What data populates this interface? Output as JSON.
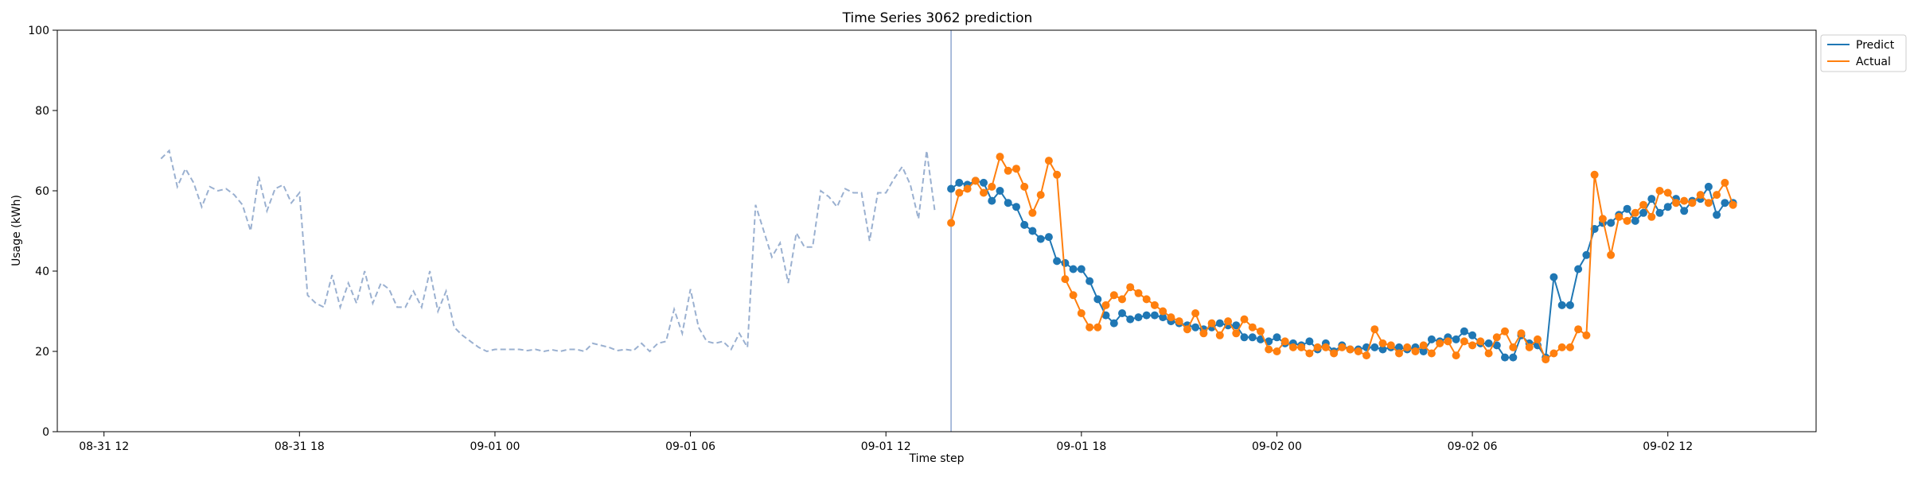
{
  "chart_data": {
    "type": "line",
    "title": "Time Series 3062 prediction",
    "xlabel": "Time step",
    "ylabel": "Usage (kWh)",
    "ylim": [
      0,
      100
    ],
    "xlim": [
      "2024-08-31 10:34",
      "2024-09-02 16:33"
    ],
    "yticks": [
      0,
      20,
      40,
      60,
      80,
      100
    ],
    "xticks": [
      {
        "t": "2024-08-31 12:00",
        "label": "08-31 12"
      },
      {
        "t": "2024-08-31 18:00",
        "label": "08-31 18"
      },
      {
        "t": "2024-09-01 00:00",
        "label": "09-01 00"
      },
      {
        "t": "2024-09-01 06:00",
        "label": "09-01 06"
      },
      {
        "t": "2024-09-01 12:00",
        "label": "09-01 12"
      },
      {
        "t": "2024-09-01 18:00",
        "label": "09-01 18"
      },
      {
        "t": "2024-09-02 00:00",
        "label": "09-02 00"
      },
      {
        "t": "2024-09-02 06:00",
        "label": "09-02 06"
      },
      {
        "t": "2024-09-02 12:00",
        "label": "09-02 12"
      }
    ],
    "step_minutes": 15,
    "grid": false,
    "legend_position": "top-right",
    "forecast_start": "2024-09-01 14:00",
    "colors": {
      "history": "#9ab0d0",
      "predict": "#1f77b4",
      "actual": "#ff7f0e",
      "divider": "#8fa8d0"
    },
    "history": {
      "start": "2024-08-31 13:45",
      "style": "dashed",
      "values": [
        68,
        70,
        61,
        65.5,
        62,
        56,
        61,
        60,
        60.5,
        59,
        56.5,
        50,
        63.5,
        55,
        60.5,
        61.5,
        57,
        59.5,
        34,
        32,
        31,
        39,
        31,
        37,
        32,
        40,
        32,
        37,
        35.5,
        31,
        31,
        35,
        31,
        40,
        30,
        35,
        26,
        24,
        22.5,
        21,
        20,
        20.5,
        20.5,
        20.5,
        20.5,
        20.2,
        20.5,
        20,
        20.4,
        20,
        20.5,
        20.5,
        20,
        22,
        21.5,
        21,
        20.2,
        20.5,
        20.2,
        22,
        20,
        22,
        22.5,
        30.5,
        24.5,
        35.5,
        26,
        22.5,
        22,
        22.5,
        20.5,
        24.5,
        21,
        56.5,
        50,
        43.5,
        47,
        37,
        49.5,
        46,
        46,
        60,
        58.5,
        56,
        60.5,
        59.5,
        59.5,
        47.5,
        59.5,
        59.5,
        63,
        66,
        61.5,
        53,
        70,
        55
      ]
    },
    "series": [
      {
        "name": "Predict",
        "start": "2024-09-01 14:00",
        "values": [
          60.5,
          62,
          61.5,
          62.5,
          62,
          57.5,
          60,
          57,
          56,
          51.5,
          50,
          48,
          48.5,
          42.5,
          42,
          40.5,
          40.5,
          37.5,
          33,
          29,
          27,
          29.5,
          28,
          28.5,
          29,
          29,
          28.5,
          27.5,
          27,
          26.5,
          26,
          25.5,
          26,
          27,
          26.5,
          26.5,
          23.5,
          23.5,
          23,
          22.5,
          23.5,
          22,
          22,
          21.5,
          22.5,
          20.5,
          22,
          20,
          21.5,
          20.5,
          20.5,
          21,
          21,
          20.5,
          21,
          21,
          20.5,
          21,
          20,
          23,
          22.5,
          23.5,
          23,
          25,
          24,
          22,
          22,
          21.5,
          18.5,
          18.5,
          24,
          22,
          21.5,
          18.5,
          38.5,
          31.5,
          31.5,
          40.5,
          44,
          50.5,
          52,
          52,
          54,
          55.5,
          52.5,
          54.5,
          58,
          54.5,
          56,
          58,
          55,
          57.5,
          58,
          61,
          54,
          57,
          57
        ]
      },
      {
        "name": "Actual",
        "start": "2024-09-01 14:00",
        "values": [
          52,
          59.5,
          60.5,
          62.5,
          59.5,
          61,
          68.5,
          65,
          65.5,
          61,
          54.5,
          59,
          67.5,
          64,
          38,
          34,
          29.5,
          26,
          26,
          31.5,
          34,
          33,
          36,
          34.5,
          33,
          31.5,
          30,
          28.5,
          27.5,
          25.5,
          29.5,
          24.5,
          27,
          24,
          27.5,
          24.5,
          28,
          26,
          25,
          20.5,
          20,
          22.5,
          21,
          21,
          19.5,
          21,
          21,
          19.5,
          21,
          20.5,
          20,
          19,
          25.5,
          22,
          21.5,
          19.5,
          21,
          20,
          21.5,
          19.5,
          22,
          22.5,
          19,
          22.5,
          21.5,
          22.5,
          19.5,
          23.5,
          25,
          21,
          24.5,
          21,
          23,
          18,
          19.5,
          21,
          21,
          25.5,
          24,
          64,
          53,
          44,
          53.5,
          52.5,
          54.5,
          56.5,
          53.5,
          60,
          59.5,
          57,
          57.5,
          57,
          59,
          57,
          59,
          62,
          56.5
        ]
      }
    ],
    "legend": [
      {
        "label": "Predict",
        "series": "predict"
      },
      {
        "label": "Actual",
        "series": "actual"
      }
    ]
  }
}
